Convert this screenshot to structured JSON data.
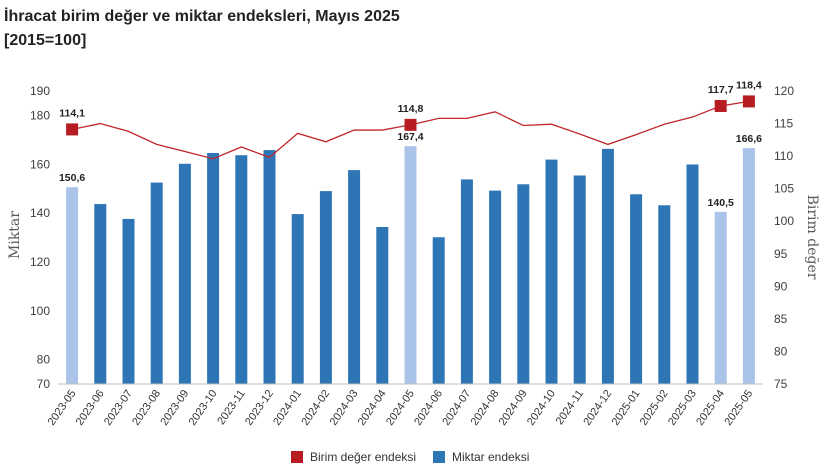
{
  "title": "İhracat birim değer ve miktar endeksleri, Mayıs 2025",
  "subtitle": "[2015=100]",
  "colors": {
    "bar": "#2E75B6",
    "bar_highlight": "#A9C4E8",
    "line": "#C0272D",
    "marker": "#B71C22"
  },
  "chart_data": {
    "type": "bar",
    "title": "İhracat birim değer ve miktar endeksleri, Mayıs 2025",
    "subtitle": "[2015=100]",
    "categories": [
      "2023-05",
      "2023-06",
      "2023-07",
      "2023-08",
      "2023-09",
      "2023-10",
      "2023-11",
      "2023-12",
      "2024-01",
      "2024-02",
      "2024-03",
      "2024-04",
      "2024-05",
      "2024-06",
      "2024-07",
      "2024-08",
      "2024-09",
      "2024-10",
      "2024-11",
      "2024-12",
      "2025-01",
      "2025-02",
      "2025-03",
      "2025-04",
      "2025-05"
    ],
    "ylabel": "Miktar",
    "y2label": "Birim değer",
    "ylim": [
      70,
      190
    ],
    "y2lim": [
      75,
      120
    ],
    "yticks": [
      70,
      80,
      100,
      120,
      140,
      160,
      180,
      190
    ],
    "y2ticks": [
      75,
      80,
      85,
      90,
      95,
      100,
      105,
      110,
      115,
      120
    ],
    "grid": false,
    "legend_position": "bottom",
    "highlight_categories": [
      "2023-05",
      "2024-05",
      "2025-04",
      "2025-05"
    ],
    "series": [
      {
        "name": "Miktar endeksi",
        "type": "bar",
        "axis": "left",
        "values": [
          150.6,
          143.7,
          137.6,
          152.5,
          160.2,
          164.6,
          163.7,
          165.8,
          139.6,
          149.0,
          157.6,
          134.3,
          167.4,
          130.1,
          153.8,
          149.2,
          151.8,
          161.9,
          155.4,
          166.3,
          147.7,
          143.2,
          159.9,
          140.5,
          166.6
        ],
        "labels": {
          "2023-05": "150,6",
          "2024-05": "167,4",
          "2025-04": "140,5",
          "2025-05": "166,6"
        }
      },
      {
        "name": "Birim değer endeksi",
        "type": "line",
        "axis": "right",
        "values": [
          114.1,
          115.0,
          113.8,
          111.8,
          110.7,
          109.6,
          111.4,
          109.8,
          113.5,
          112.2,
          114.0,
          114.0,
          114.8,
          115.8,
          115.8,
          116.8,
          114.7,
          114.9,
          113.4,
          111.8,
          113.3,
          114.9,
          116.0,
          117.7,
          118.4
        ],
        "labels": {
          "2023-05": "114,1",
          "2024-05": "114,8",
          "2025-04": "117,7",
          "2025-05": "118,4"
        }
      }
    ]
  },
  "legend": [
    {
      "label": "Birim değer endeksi",
      "color": "#B71C22"
    },
    {
      "label": "Miktar endeksi",
      "color": "#2E75B6"
    }
  ]
}
